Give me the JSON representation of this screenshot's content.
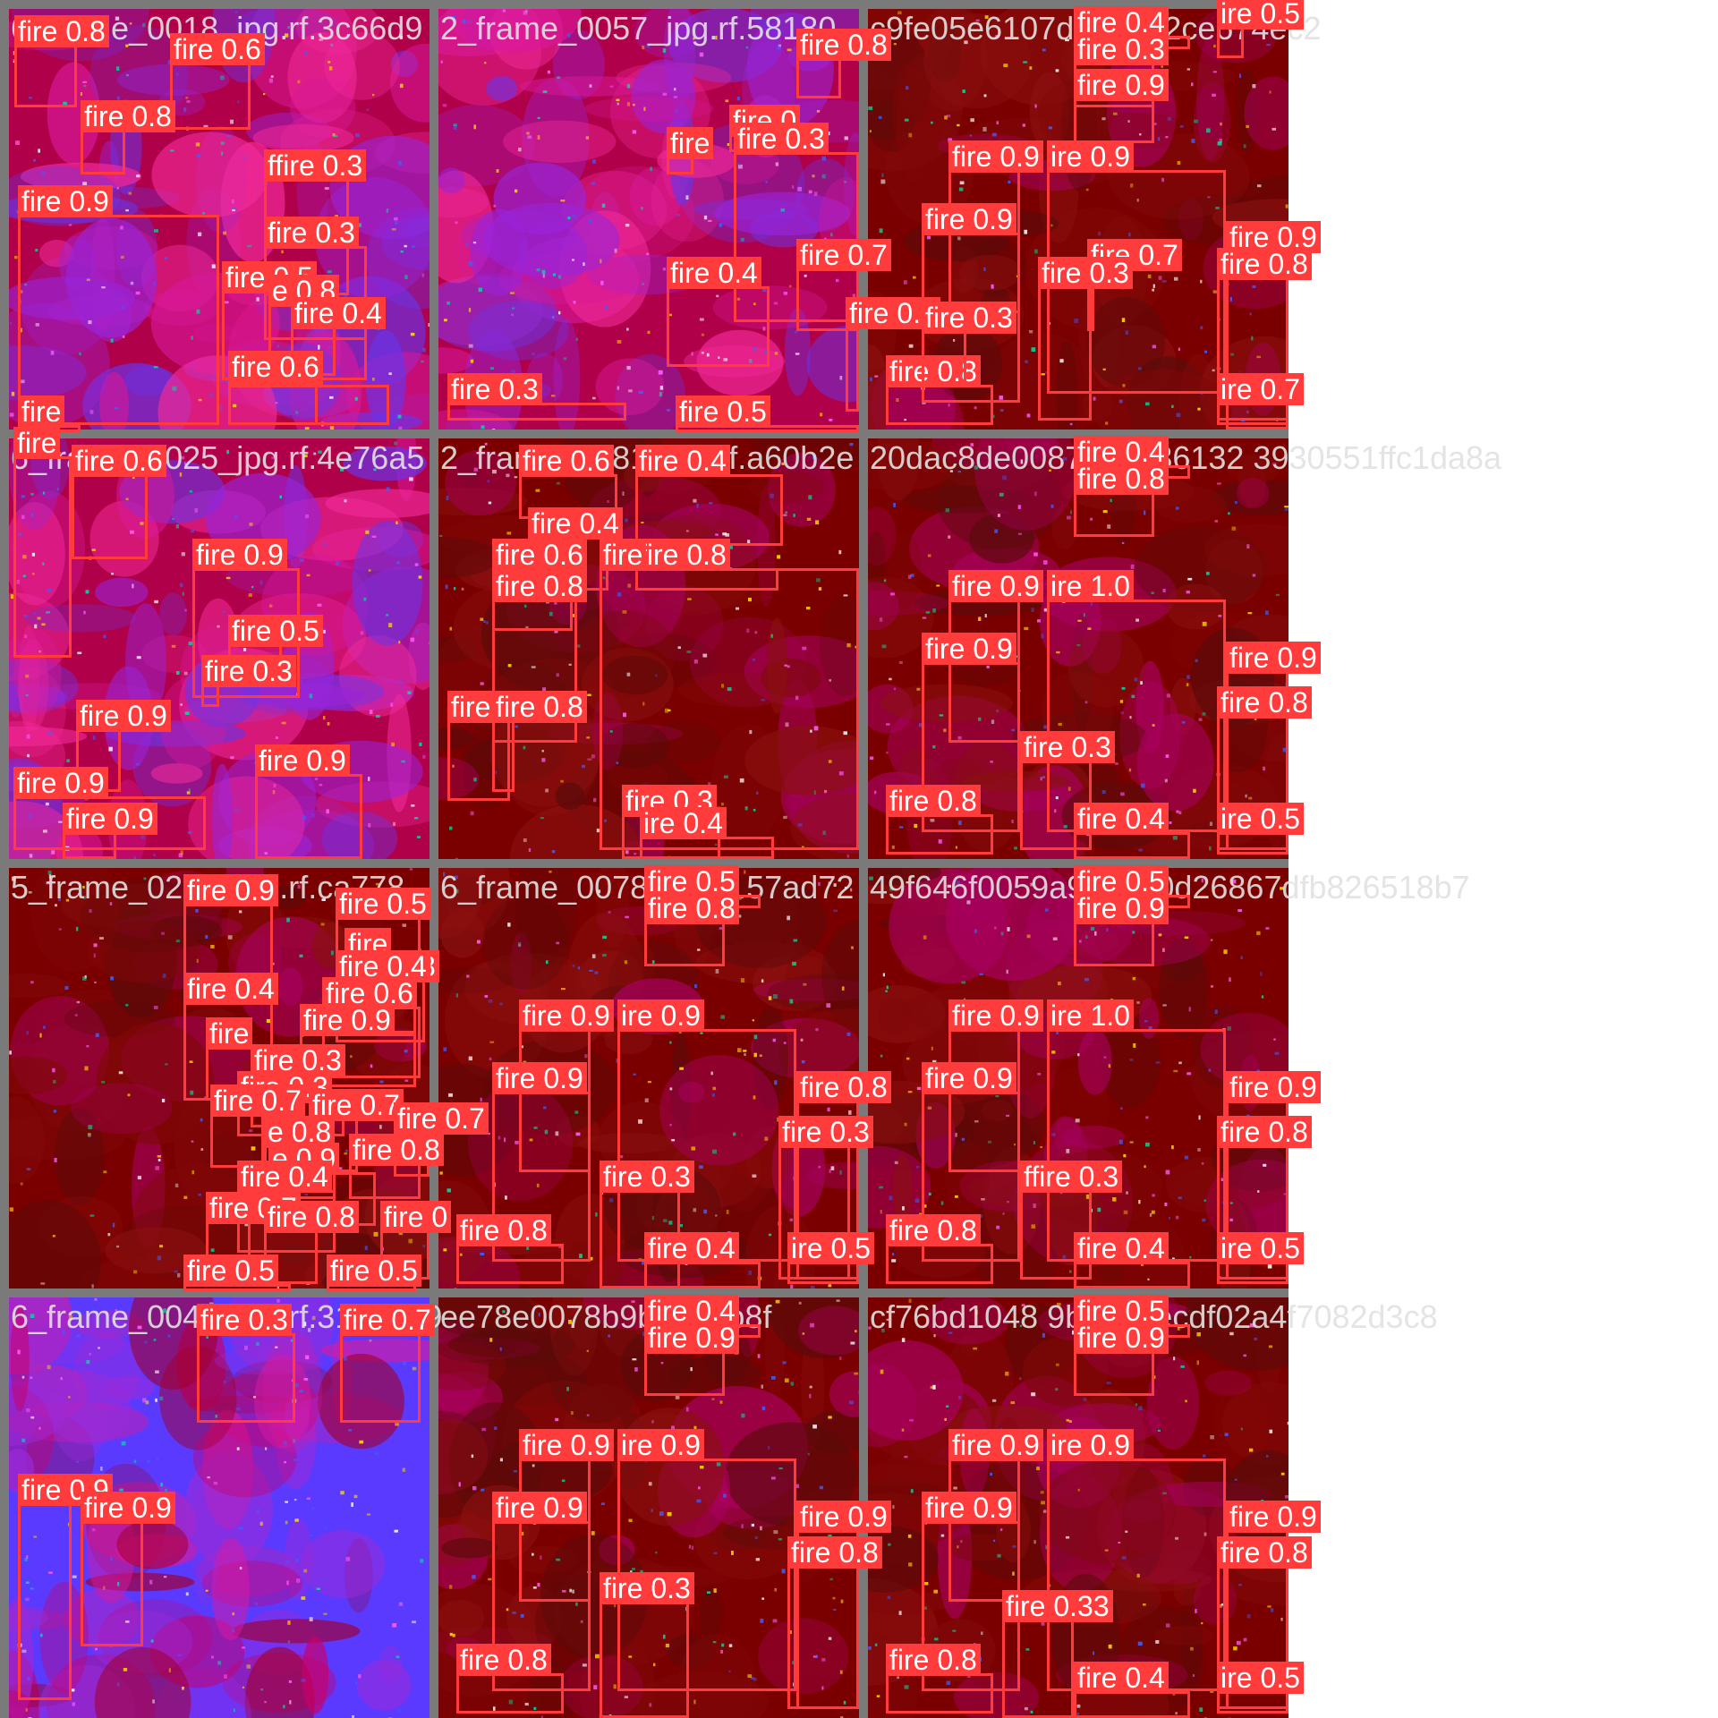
{
  "detections_grid": {
    "columns": 3,
    "rows": 4,
    "colors": {
      "box": "#ff3b3b",
      "label_text": "#ffffff",
      "title_text": "#e2e2e2",
      "separator": "#7a7a7a"
    },
    "tiles": [
      {
        "title": "6_frame_0018_jpg.rf.3c66d9",
        "palette": "pink-purple",
        "detections": [
          {
            "label": "fire 0.8"
          },
          {
            "label": "fire 0.6"
          },
          {
            "label": "fire 0.8"
          },
          {
            "label": "ffire 0.3"
          },
          {
            "label": "fire 0.9"
          },
          {
            "label": "fire 0.3"
          },
          {
            "label": "fire 0.5"
          },
          {
            "label": "e 0.8"
          },
          {
            "label": "fire 0.4"
          },
          {
            "label": "fire 0.5"
          },
          {
            "label": "fire 0.6"
          },
          {
            "label": "fire"
          }
        ]
      },
      {
        "title": "2_frame_0057_jpg.rf.58180",
        "palette": "pink-purple",
        "detections": [
          {
            "label": "fire 0.8"
          },
          {
            "label": "fire"
          },
          {
            "label": "fire 0"
          },
          {
            "label": "fire 0.3"
          },
          {
            "label": "fire 0.7"
          },
          {
            "label": "fire 0.4"
          },
          {
            "label": "fire 0.7"
          },
          {
            "label": "fire 0.3"
          },
          {
            "label": "fire 0.3"
          },
          {
            "label": "fire 0.5"
          }
        ]
      },
      {
        "title": "c9fe05e6107d2127a2ce674ec2",
        "palette": "dark-red",
        "detections": [
          {
            "label": "fire 0.4"
          },
          {
            "label": "ire 0.5"
          },
          {
            "label": "fire 0.3"
          },
          {
            "label": "fire 0.9"
          },
          {
            "label": "fire 0.9"
          },
          {
            "label": "ire 0.9"
          },
          {
            "label": "fire 0.9"
          },
          {
            "label": "fire 0.9"
          },
          {
            "label": "fire 0.8"
          },
          {
            "label": "fire 0.3"
          },
          {
            "label": "fire 0.8"
          },
          {
            "label": "fire 0.3"
          },
          {
            "label": "ire 0.7"
          }
        ]
      },
      {
        "title": "6_frame_0025_jpg.rf.4e76a5",
        "palette": "pink-purple",
        "detections": [
          {
            "label": "fire"
          },
          {
            "label": "fire 0.6"
          },
          {
            "label": "fire 0.9"
          },
          {
            "label": "fire 0.5"
          },
          {
            "label": "fire 0.3"
          },
          {
            "label": "fire 0.9"
          },
          {
            "label": "fire 0.9"
          },
          {
            "label": "fire 0.9"
          },
          {
            "label": "fire 0.9"
          }
        ]
      },
      {
        "title": "2_frame_0081_jpg.rf.a60b2e",
        "palette": "dark-red",
        "detections": [
          {
            "label": "fire 0.6"
          },
          {
            "label": "fire 0.4"
          },
          {
            "label": "fire 0.4"
          },
          {
            "label": "fire 0.6"
          },
          {
            "label": "fire 0.8"
          },
          {
            "label": "fire 0.8"
          },
          {
            "label": "fire"
          },
          {
            "label": "fire 0.3"
          },
          {
            "label": "fire 0.8"
          },
          {
            "label": "fire 0.3"
          },
          {
            "label": "ire 0.4"
          }
        ]
      },
      {
        "title": "20dac8de0087b9bd36132 3930551ffc1da8a",
        "palette": "dark-red",
        "detections": [
          {
            "label": "fire 0.4"
          },
          {
            "label": "fire 0.8"
          },
          {
            "label": "fire 0.9"
          },
          {
            "label": "ire 1.0"
          },
          {
            "label": "fire 0.9"
          },
          {
            "label": "fire 0.9"
          },
          {
            "label": "fire 0.8"
          },
          {
            "label": "fire 0.3"
          },
          {
            "label": "fire 0.8"
          },
          {
            "label": "fire 0.4"
          },
          {
            "label": "ire 0.5"
          }
        ]
      },
      {
        "title": "5_frame_0200_jpg.rf.ca778",
        "palette": "dark-red",
        "detections": [
          {
            "label": "fire 0.9"
          },
          {
            "label": "fire 0.5"
          },
          {
            "label": "fire"
          },
          {
            "label": "fire 0.4"
          },
          {
            "label": "fire 0.8"
          },
          {
            "label": "fire 0.4"
          },
          {
            "label": "fire 0.6"
          },
          {
            "label": "fire 0.9"
          },
          {
            "label": "fire"
          },
          {
            "label": "fire 0.3"
          },
          {
            "label": "fire 0.3"
          },
          {
            "label": "fire 0.7"
          },
          {
            "label": "fire 0.7"
          },
          {
            "label": "fire 0.7"
          },
          {
            "label": "e 0.8"
          },
          {
            "label": "fire 0.8"
          },
          {
            "label": "e 0.9"
          },
          {
            "label": "fire 0.4"
          },
          {
            "label": "fire 0.7"
          },
          {
            "label": "fire 0.8"
          },
          {
            "label": "fire 0"
          },
          {
            "label": "fire 0.5"
          },
          {
            "label": "fire 0.5"
          }
        ]
      },
      {
        "title": "6_frame_0078_jpg.rf.57ad72",
        "palette": "dark-red",
        "detections": [
          {
            "label": "fire 0.5"
          },
          {
            "label": "fire 0.8"
          },
          {
            "label": "fire 0.9"
          },
          {
            "label": "ire 0.9"
          },
          {
            "label": "fire 0.9"
          },
          {
            "label": "fire 0.3"
          },
          {
            "label": "fire 0.8"
          },
          {
            "label": "fire 0.3"
          },
          {
            "label": "fire 0.8"
          },
          {
            "label": "fire 0.4"
          },
          {
            "label": "ire 0.5"
          }
        ]
      },
      {
        "title": "49f646f0059a9bd490d26867dfb826518b7",
        "palette": "dark-red",
        "detections": [
          {
            "label": "fire 0.5"
          },
          {
            "label": "fire 0.9"
          },
          {
            "label": "fire 0.9"
          },
          {
            "label": "ire 1.0"
          },
          {
            "label": "fire 0.9"
          },
          {
            "label": "fire 0.9"
          },
          {
            "label": "fire 0.8"
          },
          {
            "label": "ffire 0.3"
          },
          {
            "label": "fire 0.8"
          },
          {
            "label": "fire 0.4"
          },
          {
            "label": "ire 0.5"
          }
        ]
      },
      {
        "title": "6_frame_0040_jpg.rf.3185169",
        "palette": "blue-pink",
        "detections": [
          {
            "label": "fire 0.3"
          },
          {
            "label": "fire 0.7"
          },
          {
            "label": "fire 0.9"
          },
          {
            "label": "fire 0.9"
          }
        ]
      },
      {
        "title": "ee78e0078b9bd3deb8f",
        "palette": "dark-red",
        "detections": [
          {
            "label": "fire 0.4"
          },
          {
            "label": "fire 0.9"
          },
          {
            "label": "fire 0.9"
          },
          {
            "label": "ire 0.9"
          },
          {
            "label": "fire 0.9"
          },
          {
            "label": "fire 0.9"
          },
          {
            "label": "fire 0.8"
          },
          {
            "label": "fire 0.3"
          },
          {
            "label": "fire 0.8"
          }
        ]
      },
      {
        "title": "cf76bd1048 9bd47becdf02a4f7082d3c8",
        "palette": "dark-red",
        "detections": [
          {
            "label": "fire 0.5"
          },
          {
            "label": "fire 0.9"
          },
          {
            "label": "fire 0.9"
          },
          {
            "label": "ire 0.9"
          },
          {
            "label": "fire 0.9"
          },
          {
            "label": "fire 0.9"
          },
          {
            "label": "fire 0.8"
          },
          {
            "label": "fire 0.33"
          },
          {
            "label": "fire 0.8"
          },
          {
            "label": "fire 0.4"
          },
          {
            "label": "ire 0.5"
          }
        ]
      }
    ]
  }
}
